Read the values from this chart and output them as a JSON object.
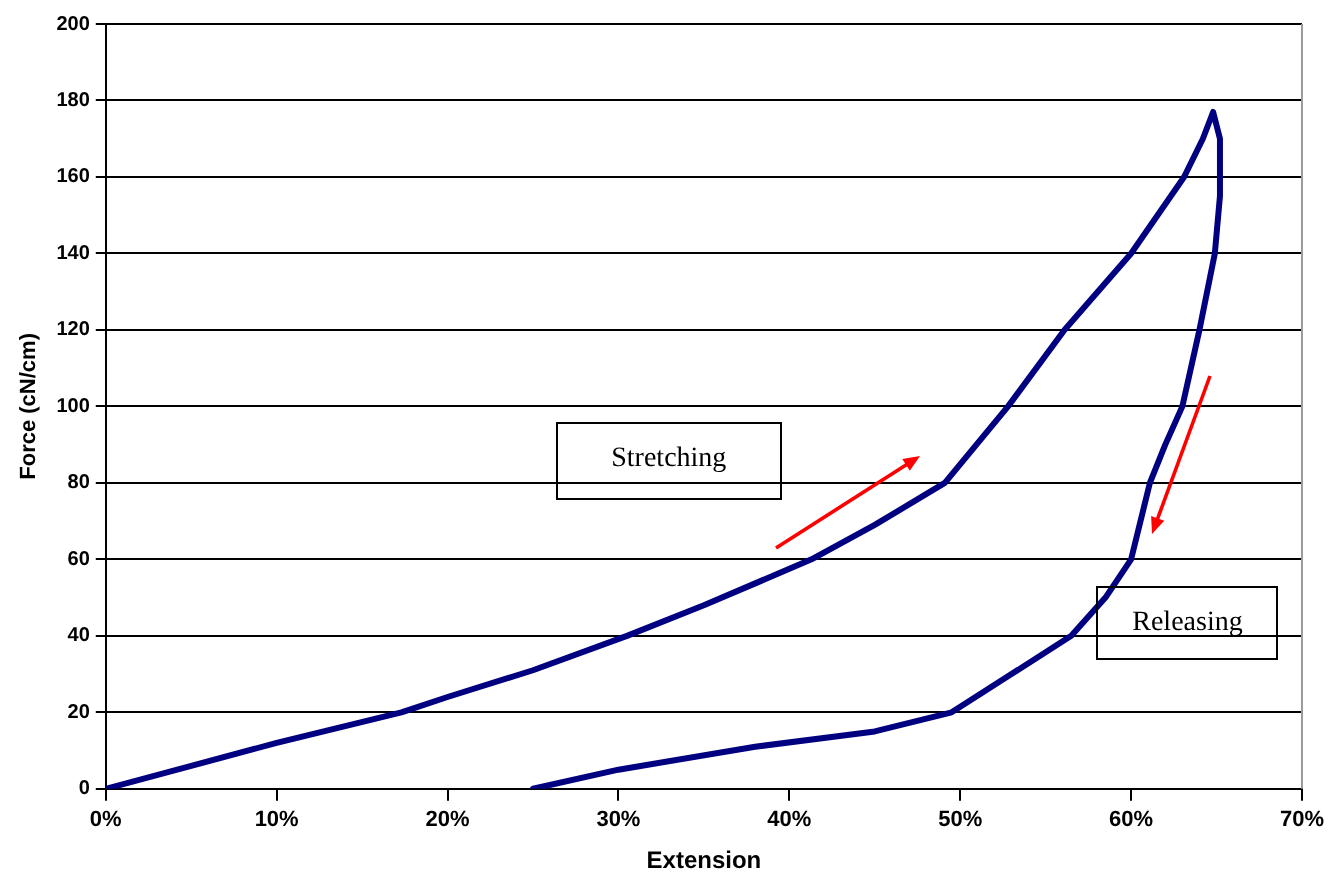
{
  "chart_data": {
    "type": "line",
    "xlabel": "Extension",
    "ylabel": "Force (cN/cm)",
    "x": [
      0,
      5,
      10,
      17.3,
      20,
      25,
      30.5,
      35,
      41.3,
      45,
      49.1,
      52.8,
      56.1,
      60,
      63.1,
      64.2,
      64.8,
      65.2,
      65.2,
      64.9,
      64,
      63,
      62,
      61.1,
      60,
      58.5,
      56.5,
      53,
      49.5,
      45,
      38,
      30,
      25
    ],
    "series": [
      {
        "color": "#000080",
        "values": [
          0,
          6,
          12,
          20,
          24,
          31,
          40,
          48,
          60,
          69,
          80,
          100,
          120,
          140,
          160,
          170,
          177,
          170,
          155,
          140,
          120,
          100,
          90,
          80,
          60,
          50,
          40,
          30,
          20,
          15,
          11,
          5,
          0
        ]
      }
    ],
    "xlim": [
      0,
      70
    ],
    "xticks": [
      {
        "value": 0,
        "label": "0%"
      },
      {
        "value": 10,
        "label": "10%"
      },
      {
        "value": 20,
        "label": "20%"
      },
      {
        "value": 30,
        "label": "30%"
      },
      {
        "value": 40,
        "label": "40%"
      },
      {
        "value": 50,
        "label": "50%"
      },
      {
        "value": 60,
        "label": "60%"
      },
      {
        "value": 70,
        "label": "70%"
      }
    ],
    "ylim": [
      0,
      200
    ],
    "yticks": [
      0,
      20,
      40,
      60,
      80,
      100,
      120,
      140,
      160,
      180,
      200
    ],
    "grid": "y",
    "legend": false,
    "marker": "none",
    "line_style": "solid",
    "annotations": [
      "Stretching",
      "Releasing"
    ]
  }
}
